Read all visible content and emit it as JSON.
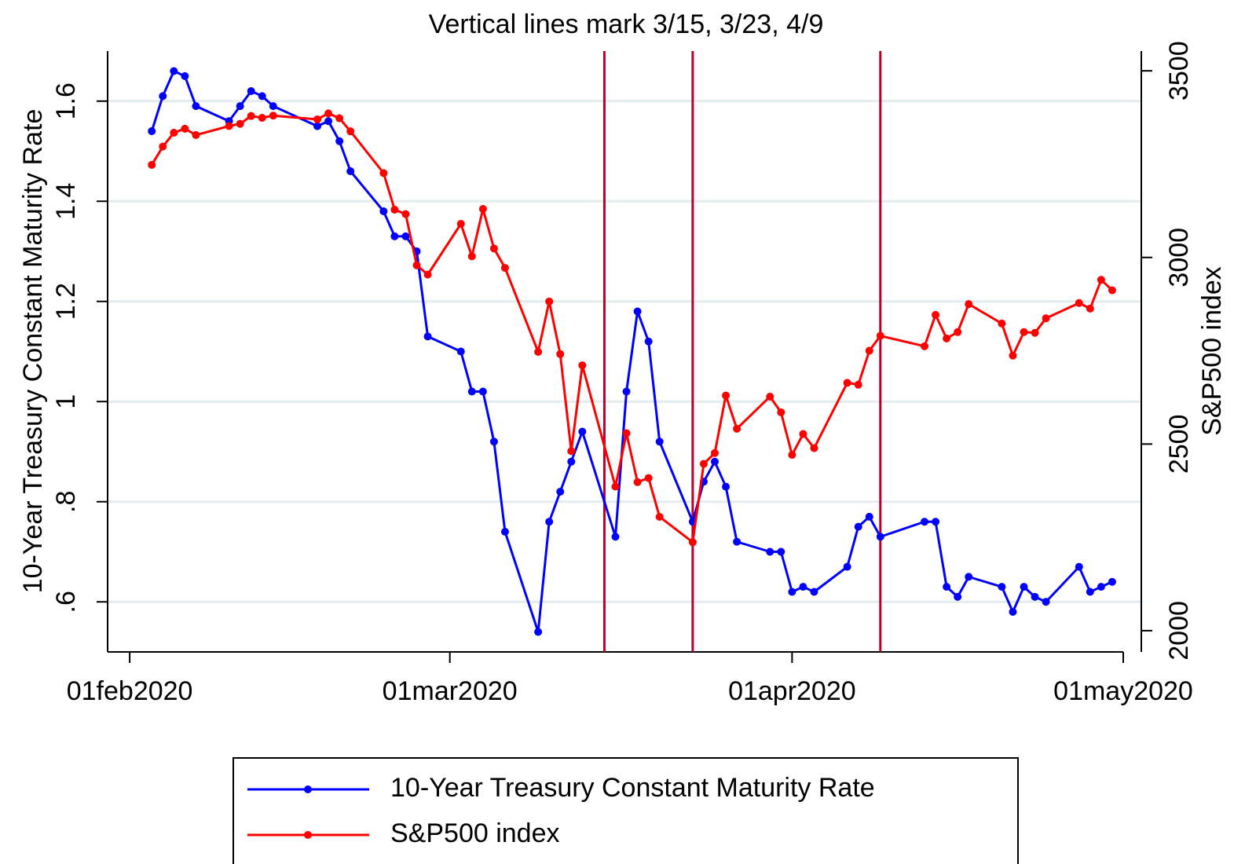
{
  "chart_data": {
    "type": "line",
    "title": "Vertical lines mark 3/15, 3/23, 4/9",
    "ylabel": "10-Year Treasury Constant Maturity Rate",
    "y2label": "S&P500 index",
    "x": [
      "2020-02-03",
      "2020-02-04",
      "2020-02-05",
      "2020-02-06",
      "2020-02-07",
      "2020-02-10",
      "2020-02-11",
      "2020-02-12",
      "2020-02-13",
      "2020-02-14",
      "2020-02-18",
      "2020-02-19",
      "2020-02-20",
      "2020-02-21",
      "2020-02-24",
      "2020-02-25",
      "2020-02-26",
      "2020-02-27",
      "2020-02-28",
      "2020-03-02",
      "2020-03-03",
      "2020-03-04",
      "2020-03-05",
      "2020-03-06",
      "2020-03-09",
      "2020-03-10",
      "2020-03-11",
      "2020-03-12",
      "2020-03-13",
      "2020-03-16",
      "2020-03-17",
      "2020-03-18",
      "2020-03-19",
      "2020-03-20",
      "2020-03-23",
      "2020-03-24",
      "2020-03-25",
      "2020-03-26",
      "2020-03-27",
      "2020-03-30",
      "2020-03-31",
      "2020-04-01",
      "2020-04-02",
      "2020-04-03",
      "2020-04-06",
      "2020-04-07",
      "2020-04-08",
      "2020-04-09",
      "2020-04-13",
      "2020-04-14",
      "2020-04-15",
      "2020-04-16",
      "2020-04-17",
      "2020-04-20",
      "2020-04-21",
      "2020-04-22",
      "2020-04-23",
      "2020-04-24",
      "2020-04-27",
      "2020-04-28",
      "2020-04-29",
      "2020-04-30"
    ],
    "series": [
      {
        "name": "10-Year Treasury Constant Maturity Rate",
        "color": "#0000ff",
        "axis": "y",
        "values": [
          1.54,
          1.61,
          1.66,
          1.65,
          1.59,
          1.56,
          1.59,
          1.62,
          1.61,
          1.59,
          1.55,
          1.56,
          1.52,
          1.46,
          1.38,
          1.33,
          1.33,
          1.3,
          1.13,
          1.1,
          1.02,
          1.02,
          0.92,
          0.74,
          0.54,
          0.76,
          0.82,
          0.88,
          0.94,
          0.73,
          1.02,
          1.18,
          1.12,
          0.92,
          0.76,
          0.84,
          0.88,
          0.83,
          0.72,
          0.7,
          0.7,
          0.62,
          0.63,
          0.62,
          0.67,
          0.75,
          0.77,
          0.73,
          0.76,
          0.76,
          0.63,
          0.61,
          0.65,
          0.63,
          0.58,
          0.63,
          0.61,
          0.6,
          0.67,
          0.62,
          0.63,
          0.64
        ]
      },
      {
        "name": "S&P500 index",
        "color": "#ff0000",
        "axis": "y2",
        "values": [
          3248,
          3297,
          3334,
          3345,
          3328,
          3352,
          3358,
          3379,
          3374,
          3380,
          3370,
          3386,
          3373,
          3338,
          3226,
          3128,
          3116,
          2979,
          2954,
          3090,
          3003,
          3130,
          3024,
          2972,
          2747,
          2882,
          2741,
          2481,
          2711,
          2386,
          2529,
          2398,
          2409,
          2305,
          2237,
          2447,
          2476,
          2630,
          2541,
          2627,
          2585,
          2471,
          2527,
          2489,
          2664,
          2659,
          2750,
          2790,
          2762,
          2846,
          2783,
          2800,
          2875,
          2823,
          2737,
          2800,
          2798,
          2837,
          2878,
          2863,
          2940,
          2912
        ]
      }
    ],
    "vlines": [
      "2020-03-15",
      "2020-03-23",
      "2020-04-09"
    ],
    "vline_color": "#b8002c",
    "xlim": [
      "2020-01-30",
      "2020-05-01"
    ],
    "xticks": [
      {
        "value": "2020-02-01",
        "label": "01feb2020"
      },
      {
        "value": "2020-03-01",
        "label": "01mar2020"
      },
      {
        "value": "2020-04-01",
        "label": "01apr2020"
      },
      {
        "value": "2020-05-01",
        "label": "01may2020"
      }
    ],
    "ylim": [
      0.5,
      1.7
    ],
    "yticks": [
      {
        "value": 0.6,
        "label": ".6"
      },
      {
        "value": 0.8,
        "label": ".8"
      },
      1,
      1.2,
      1.4,
      1.6
    ],
    "y2lim": [
      1943,
      3553
    ],
    "y2ticks": [
      2000,
      2500,
      3000,
      3500
    ],
    "grid": true,
    "legend": "bottom"
  }
}
